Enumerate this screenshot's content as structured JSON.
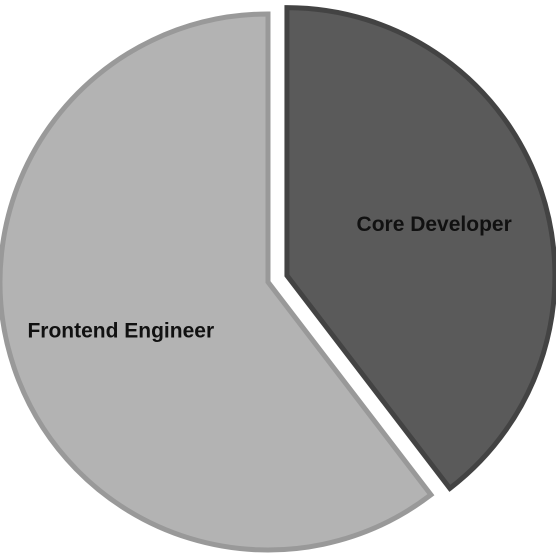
{
  "chart_data": {
    "type": "pie",
    "title": "",
    "categories": [
      "Core Developer",
      "Frontend Engineer"
    ],
    "values": [
      39.6,
      60.4
    ],
    "colors": [
      "#5a5a5a",
      "#b3b3b3"
    ],
    "edge_colors": [
      "#434343",
      "#999999"
    ],
    "exploded": [
      true,
      false
    ],
    "start_angle_deg": 0,
    "direction": "clockwise",
    "legend": "none"
  }
}
